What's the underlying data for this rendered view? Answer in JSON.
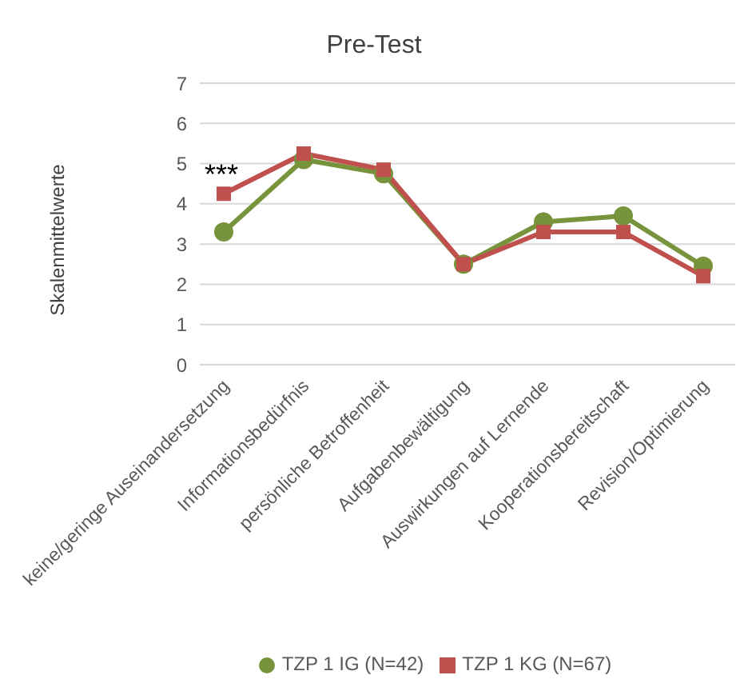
{
  "chart_data": {
    "type": "line",
    "title": "Pre-Test",
    "ylabel": "Skalenmittelwerte",
    "categories": [
      "keine/geringe Auseinandersetzung",
      "Informationsbedürfnis",
      "persönliche Betroffenheit",
      "Aufgabenbewältigung",
      "Auswirkungen auf Lernende",
      "Kooperationsbereitschaft",
      "Revision/Optimierung"
    ],
    "series": [
      {
        "name": "TZP 1  IG (N=42)",
        "color": "#77933c",
        "marker": "circle",
        "values": [
          3.3,
          5.1,
          4.75,
          2.5,
          3.55,
          3.7,
          2.45
        ]
      },
      {
        "name": "TZP 1 KG (N=67)",
        "color": "#c0504d",
        "marker": "square",
        "values": [
          4.25,
          5.25,
          4.85,
          2.5,
          3.3,
          3.3,
          2.2
        ]
      }
    ],
    "ylim": [
      0,
      7
    ],
    "yticks": [
      0,
      1,
      2,
      3,
      4,
      5,
      6,
      7
    ],
    "grid": "y",
    "legend": "bottom",
    "annotations": [
      "***"
    ]
  }
}
